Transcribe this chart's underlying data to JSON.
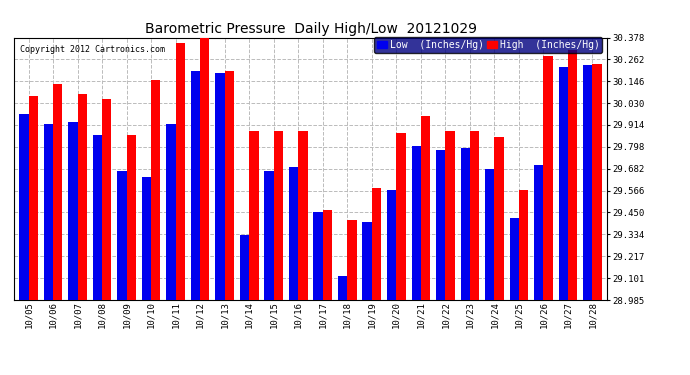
{
  "title": "Barometric Pressure  Daily High/Low  20121029",
  "copyright": "Copyright 2012 Cartronics.com",
  "legend_low": "Low  (Inches/Hg)",
  "legend_high": "High  (Inches/Hg)",
  "dates": [
    "10/05",
    "10/06",
    "10/07",
    "10/08",
    "10/09",
    "10/10",
    "10/11",
    "10/12",
    "10/13",
    "10/14",
    "10/15",
    "10/16",
    "10/17",
    "10/18",
    "10/19",
    "10/20",
    "10/21",
    "10/22",
    "10/23",
    "10/24",
    "10/25",
    "10/26",
    "10/27",
    "10/28"
  ],
  "low_values": [
    29.97,
    29.92,
    29.93,
    29.86,
    29.67,
    29.64,
    29.92,
    30.2,
    30.19,
    29.33,
    29.67,
    29.69,
    29.45,
    29.11,
    29.4,
    29.57,
    29.8,
    29.78,
    29.79,
    29.68,
    29.42,
    29.7,
    30.22,
    30.23
  ],
  "high_values": [
    30.07,
    30.13,
    30.08,
    30.05,
    29.86,
    30.15,
    30.35,
    30.38,
    30.2,
    29.88,
    29.88,
    29.88,
    29.46,
    29.41,
    29.58,
    29.87,
    29.96,
    29.88,
    29.88,
    29.85,
    29.57,
    30.28,
    30.31,
    30.24
  ],
  "ylim_min": 28.985,
  "ylim_max": 30.378,
  "ytick_values": [
    28.985,
    29.101,
    29.217,
    29.334,
    29.45,
    29.566,
    29.682,
    29.798,
    29.914,
    30.03,
    30.146,
    30.262,
    30.378
  ],
  "bar_width": 0.38,
  "low_color": "#0000ee",
  "high_color": "#ff0000",
  "bg_color": "#ffffff",
  "grid_color": "#bbbbbb",
  "title_fontsize": 10,
  "tick_fontsize": 6.5,
  "legend_fontsize": 7,
  "legend_bg": "#000080",
  "fig_width": 6.9,
  "fig_height": 3.75,
  "dpi": 100
}
